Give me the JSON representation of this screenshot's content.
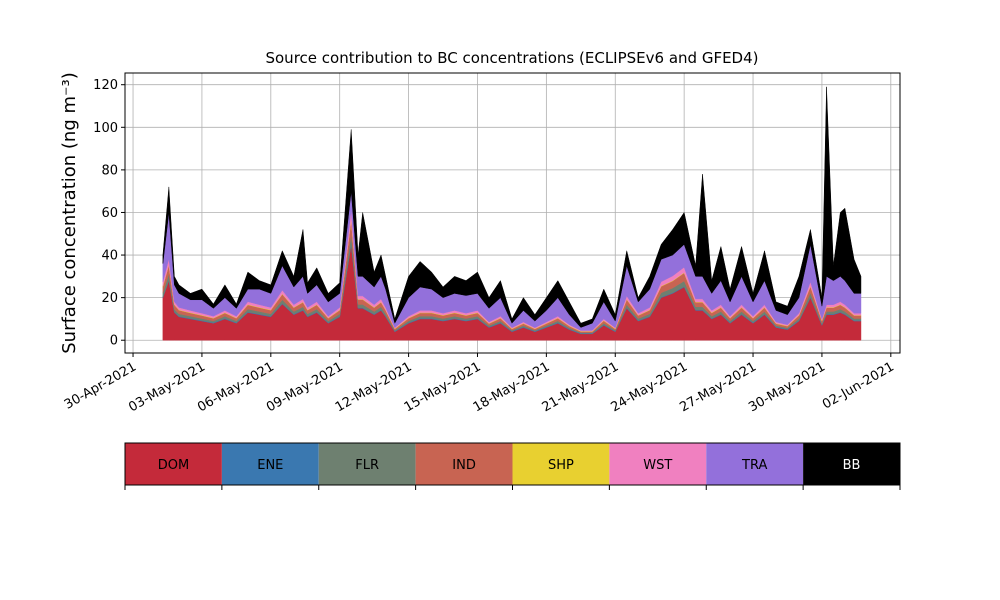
{
  "chart_data": {
    "type": "stacked_area",
    "title": "Source contribution to BC concentrations (ECLIPSEv6 and GFED4)",
    "y_label": "Surface concentration (ng m⁻³)",
    "x": [
      1.3,
      1.56,
      1.8,
      2,
      2.5,
      3,
      3.5,
      4,
      4.5,
      5,
      5.5,
      6,
      6.5,
      7,
      7.4,
      7.6,
      8,
      8.5,
      9,
      9.5,
      9.8,
      10,
      10.5,
      10.8,
      11,
      11.4,
      12,
      12.5,
      13,
      13.5,
      14,
      14.5,
      15,
      15.5,
      16,
      16.5,
      17,
      17.5,
      18,
      18.5,
      19,
      19.5,
      20,
      20.5,
      21,
      21.5,
      22,
      22.5,
      23,
      23.5,
      24,
      24.5,
      24.8,
      25.2,
      25.6,
      26,
      26.5,
      27,
      27.5,
      28,
      28.5,
      29,
      29.5,
      30,
      30.2,
      30.5,
      30.8,
      31,
      31.4,
      31.7
    ],
    "xlim": [
      -0.35,
      33.4
    ],
    "xticks": [
      {
        "value": 0,
        "label": "30-Apr-2021"
      },
      {
        "value": 3,
        "label": "03-May-2021"
      },
      {
        "value": 6,
        "label": "06-May-2021"
      },
      {
        "value": 9,
        "label": "09-May-2021"
      },
      {
        "value": 12,
        "label": "12-May-2021"
      },
      {
        "value": 15,
        "label": "15-May-2021"
      },
      {
        "value": 18,
        "label": "18-May-2021"
      },
      {
        "value": 21,
        "label": "21-May-2021"
      },
      {
        "value": 24,
        "label": "24-May-2021"
      },
      {
        "value": 27,
        "label": "27-May-2021"
      },
      {
        "value": 30,
        "label": "30-May-2021"
      },
      {
        "value": 33,
        "label": "02-Jun-2021"
      }
    ],
    "ylim": [
      -6,
      125.5
    ],
    "yticks": [
      0,
      20,
      40,
      60,
      80,
      100,
      120
    ],
    "grid": true,
    "series": [
      {
        "name": "DOM",
        "color": "#c42a3a",
        "values": [
          20,
          28,
          13,
          11,
          10,
          9,
          8,
          10,
          8,
          13,
          12,
          11,
          17,
          12,
          14,
          11,
          13,
          8,
          11,
          45,
          15,
          15,
          12,
          14,
          11,
          4,
          8,
          10,
          10,
          9,
          10,
          9,
          10,
          6,
          8,
          4,
          6,
          4,
          6,
          8,
          5,
          3,
          3,
          7,
          4,
          15,
          9,
          11,
          20,
          22,
          25,
          14,
          14,
          10,
          12,
          8,
          12,
          8,
          12,
          6,
          5,
          9,
          20,
          7,
          12,
          12,
          13,
          12,
          9,
          9
        ]
      },
      {
        "name": "ENE",
        "color": "#3a78b0",
        "values": [
          0.3,
          0.3,
          0.3,
          0.3,
          0.3,
          0.3,
          0.3,
          0.3,
          0.3,
          0.3,
          0.3,
          0.3,
          0.3,
          0.3,
          0.3,
          0.3,
          0.3,
          0.3,
          0.3,
          0.3,
          0.3,
          0.3,
          0.3,
          0.3,
          0.3,
          0.3,
          0.3,
          0.3,
          0.3,
          0.3,
          0.3,
          0.3,
          0.3,
          0.3,
          0.3,
          0.3,
          0.3,
          0.3,
          0.3,
          0.3,
          0.3,
          0.3,
          0.3,
          0.3,
          0.3,
          0.3,
          0.3,
          0.3,
          0.3,
          0.3,
          0.3,
          0.3,
          0.3,
          0.3,
          0.3,
          0.3,
          0.3,
          0.3,
          0.3,
          0.3,
          0.3,
          0.3,
          0.3,
          0.3,
          0.3,
          0.3,
          0.3,
          0.3,
          0.3,
          0.3
        ]
      },
      {
        "name": "FLR",
        "color": "#6e8070",
        "values": [
          2,
          2.8,
          1.3,
          1.1,
          1,
          0.9,
          0.8,
          1,
          0.8,
          1.3,
          1.2,
          1.1,
          1.7,
          1.2,
          1.4,
          1.1,
          1.3,
          0.8,
          1.1,
          4.5,
          1.5,
          1.5,
          1.2,
          1.4,
          1.1,
          0.4,
          0.8,
          1,
          1,
          0.9,
          1,
          0.9,
          1,
          0.6,
          0.8,
          0.4,
          0.6,
          0.4,
          0.6,
          0.8,
          0.5,
          0.3,
          0.3,
          0.7,
          0.4,
          1.5,
          0.9,
          1.1,
          2,
          2.2,
          2.5,
          1.4,
          1.4,
          1,
          1.2,
          0.8,
          1.2,
          0.8,
          1.2,
          0.6,
          0.5,
          0.9,
          2,
          0.7,
          1.2,
          1.2,
          1.3,
          1.2,
          0.9,
          0.9
        ]
      },
      {
        "name": "IND",
        "color": "#c86452",
        "values": [
          3,
          4.2,
          2,
          1.7,
          1.5,
          1.4,
          1.2,
          1.5,
          1.2,
          2,
          1.8,
          1.7,
          2.6,
          1.8,
          2.1,
          1.7,
          2,
          1.2,
          1.7,
          6.8,
          2.3,
          2.3,
          1.8,
          2.1,
          1.7,
          0.6,
          1.2,
          1.5,
          1.5,
          1.4,
          1.5,
          1.4,
          1.5,
          0.9,
          1.2,
          0.6,
          0.9,
          0.6,
          0.9,
          1.2,
          0.8,
          0.5,
          0.5,
          1.1,
          0.6,
          2.3,
          1.4,
          1.7,
          3,
          3.3,
          3.8,
          2.1,
          2.1,
          1.5,
          1.8,
          1.2,
          1.8,
          1.2,
          1.8,
          0.9,
          0.8,
          1.4,
          3,
          1.1,
          1.8,
          1.8,
          2,
          1.8,
          1.4,
          1.4
        ]
      },
      {
        "name": "SHP",
        "color": "#e8d030",
        "values": [
          0.2,
          0.2,
          0.2,
          0.2,
          0.2,
          0.2,
          0.2,
          0.2,
          0.2,
          0.2,
          0.2,
          0.2,
          0.2,
          0.2,
          0.2,
          0.2,
          0.2,
          0.2,
          0.2,
          0.2,
          0.2,
          0.2,
          0.2,
          0.2,
          0.2,
          0.2,
          0.2,
          0.2,
          0.2,
          0.2,
          0.2,
          0.2,
          0.2,
          0.2,
          0.2,
          0.2,
          0.2,
          0.2,
          0.2,
          0.2,
          0.2,
          0.2,
          0.2,
          0.2,
          0.2,
          0.2,
          0.2,
          0.2,
          0.2,
          0.2,
          0.2,
          0.2,
          0.2,
          0.2,
          0.2,
          0.2,
          0.2,
          0.2,
          0.2,
          0.2,
          0.2,
          0.2,
          0.2,
          0.2,
          0.2,
          0.2,
          0.2,
          0.2,
          0.2,
          0.2
        ]
      },
      {
        "name": "WST",
        "color": "#f080c0",
        "values": [
          2,
          2.8,
          1.3,
          1.1,
          1,
          0.9,
          0.8,
          1,
          0.8,
          1.3,
          1.2,
          1.1,
          1.7,
          1.2,
          1.4,
          1.1,
          1.3,
          0.8,
          1.1,
          4.5,
          1.5,
          1.5,
          1.2,
          1.4,
          1.1,
          0.4,
          0.8,
          1,
          1,
          0.9,
          1,
          0.9,
          1,
          0.6,
          0.8,
          0.4,
          0.6,
          0.4,
          0.6,
          0.8,
          0.5,
          0.3,
          0.3,
          0.7,
          0.4,
          1.5,
          0.9,
          1.1,
          2,
          2.2,
          2.5,
          1.4,
          1.4,
          1,
          1.2,
          0.8,
          1.2,
          0.8,
          1.2,
          0.6,
          0.5,
          0.9,
          2,
          0.7,
          1.2,
          1.2,
          1.3,
          1.2,
          0.9,
          0.9
        ]
      },
      {
        "name": "TRA",
        "color": "#9370db",
        "values": [
          8.5,
          21.7,
          7.9,
          6.6,
          5,
          6.3,
          3.7,
          6,
          3.7,
          5.9,
          7.3,
          6.6,
          11.5,
          8.3,
          10.6,
          6.6,
          7.9,
          6.7,
          6.6,
          8.7,
          9.2,
          9.2,
          8.3,
          10.6,
          8.6,
          2.1,
          8.7,
          11,
          10,
          7.3,
          8,
          8.3,
          8,
          6.4,
          8.7,
          2.1,
          5.4,
          3.1,
          5.4,
          8.7,
          4.7,
          1.4,
          3.4,
          8,
          3.1,
          14.2,
          5.3,
          8.6,
          10.5,
          9.8,
          10.7,
          10.6,
          10.6,
          8,
          11.3,
          6.7,
          13.3,
          6.7,
          11.3,
          5.4,
          4.7,
          7.3,
          17.5,
          6,
          13.3,
          11.3,
          11.9,
          11.3,
          9.3,
          9.3
        ]
      },
      {
        "name": "BB",
        "color": "#000000",
        "values": [
          4,
          12,
          4,
          4,
          3,
          5,
          2,
          6,
          2,
          8,
          4,
          4,
          7,
          5,
          22,
          5,
          8,
          4,
          5,
          29,
          10,
          30,
          7,
          10,
          6,
          2,
          10,
          12,
          8,
          5,
          8,
          7,
          10,
          5,
          8,
          2,
          6,
          3,
          6,
          8,
          6,
          2,
          2,
          6,
          3,
          7,
          2,
          6,
          7,
          12,
          15,
          5,
          48,
          6,
          16,
          6,
          14,
          4,
          14,
          4,
          4,
          10,
          7,
          4,
          89,
          7,
          30,
          34,
          16,
          8
        ]
      }
    ]
  }
}
